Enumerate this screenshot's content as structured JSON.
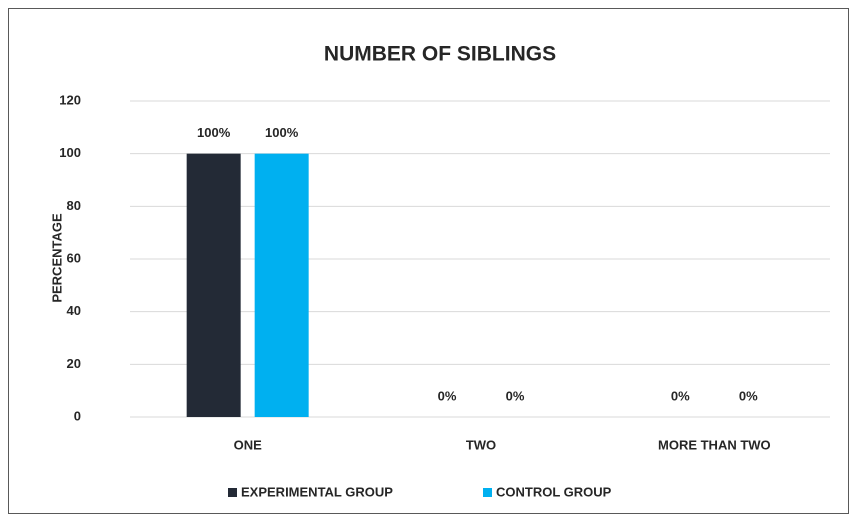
{
  "chart_data": {
    "type": "bar",
    "title": "NUMBER OF SIBLINGS",
    "y_label": "PERCENTAGE",
    "categories": [
      "ONE",
      "TWO",
      "MORE THAN TWO"
    ],
    "series": [
      {
        "name": "EXPERIMENTAL GROUP",
        "color": "#232a36",
        "values": [
          100,
          0,
          0
        ],
        "value_labels": [
          "100%",
          "0%",
          "0%"
        ]
      },
      {
        "name": "CONTROL GROUP",
        "color": "#00b0f0",
        "values": [
          100,
          0,
          0
        ],
        "value_labels": [
          "100%",
          "0%",
          "0%"
        ]
      }
    ],
    "ylim": [
      0,
      120
    ],
    "yticks": [
      0,
      20,
      40,
      60,
      80,
      100,
      120
    ],
    "grid": true,
    "legend": "bottom"
  }
}
